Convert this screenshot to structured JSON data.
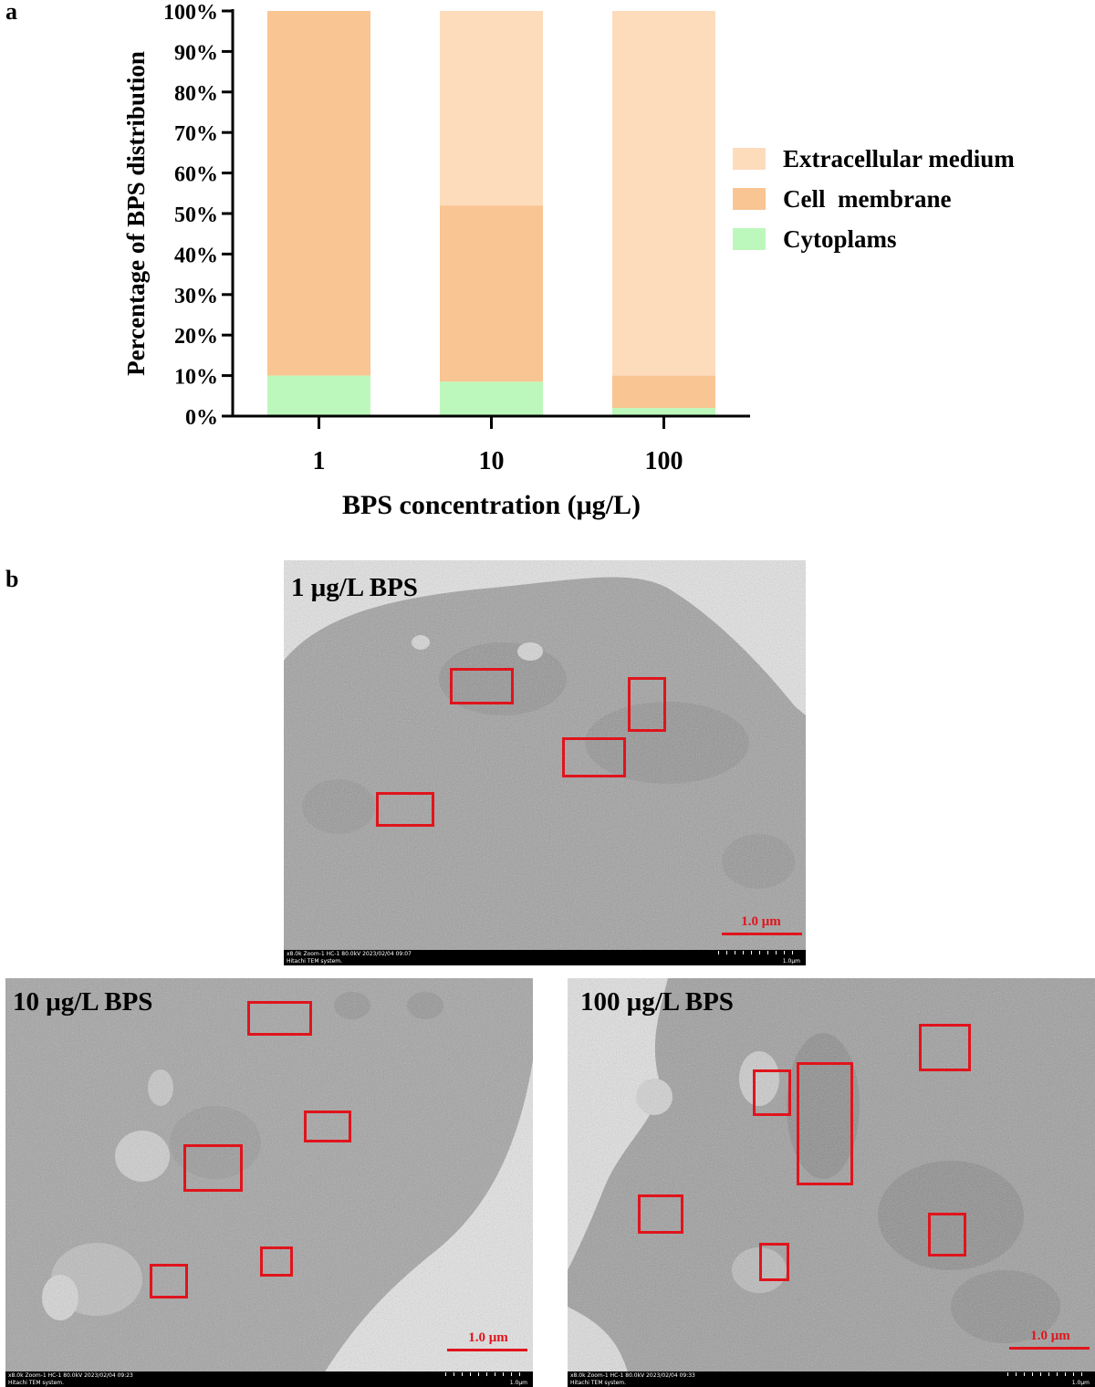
{
  "panel_a": {
    "label": "a"
  },
  "panel_b": {
    "label": "b"
  },
  "chart_data": {
    "type": "bar",
    "stacked": true,
    "categories": [
      "1",
      "10",
      "100"
    ],
    "series": [
      {
        "name": "Cytoplams",
        "values": [
          10,
          8.5,
          2
        ],
        "color": "#bcf8bc"
      },
      {
        "name": "Cell  membrane",
        "values": [
          90,
          43.5,
          8
        ],
        "color": "#f9c592"
      },
      {
        "name": "Extracellular medium",
        "values": [
          0,
          48,
          90
        ],
        "color": "#fddcbc"
      }
    ],
    "legend_order": [
      "Extracellular medium",
      "Cell  membrane",
      "Cytoplams"
    ],
    "xlabel": "BPS concentration (μg/L)",
    "ylabel": "Percentage of BPS distribution",
    "ylim": [
      0,
      100
    ],
    "yticks": [
      "0%",
      "10%",
      "20%",
      "30%",
      "40%",
      "50%",
      "60%",
      "70%",
      "80%",
      "90%",
      "100%"
    ],
    "grid": false,
    "legend_position": "right"
  },
  "tem_images": [
    {
      "title": "1 μg/L BPS",
      "scale": "1.0 μm",
      "info_line1": "x8.0k Zoom-1 HC-1 80.0kV 2023/02/04 09:07",
      "info_line2": "Hitachi TEM system.",
      "info_right": "1.0μm"
    },
    {
      "title": "10 μg/L BPS",
      "scale": "1.0 μm",
      "info_line1": "x8.0k Zoom-1 HC-1 80.0kV 2023/02/04 09:23",
      "info_line2": "Hitachi TEM system.",
      "info_right": "1.0μm"
    },
    {
      "title": "100 μg/L BPS",
      "scale": "1.0 μm",
      "info_line1": "x8.0k Zoom-1 HC-1 80.0kV 2023/02/04 09:33",
      "info_line2": "Hitachi TEM system.",
      "info_right": "1.0μm"
    }
  ],
  "colors": {
    "highlight_box": "#e0141c",
    "scale_text": "#e0141c"
  }
}
